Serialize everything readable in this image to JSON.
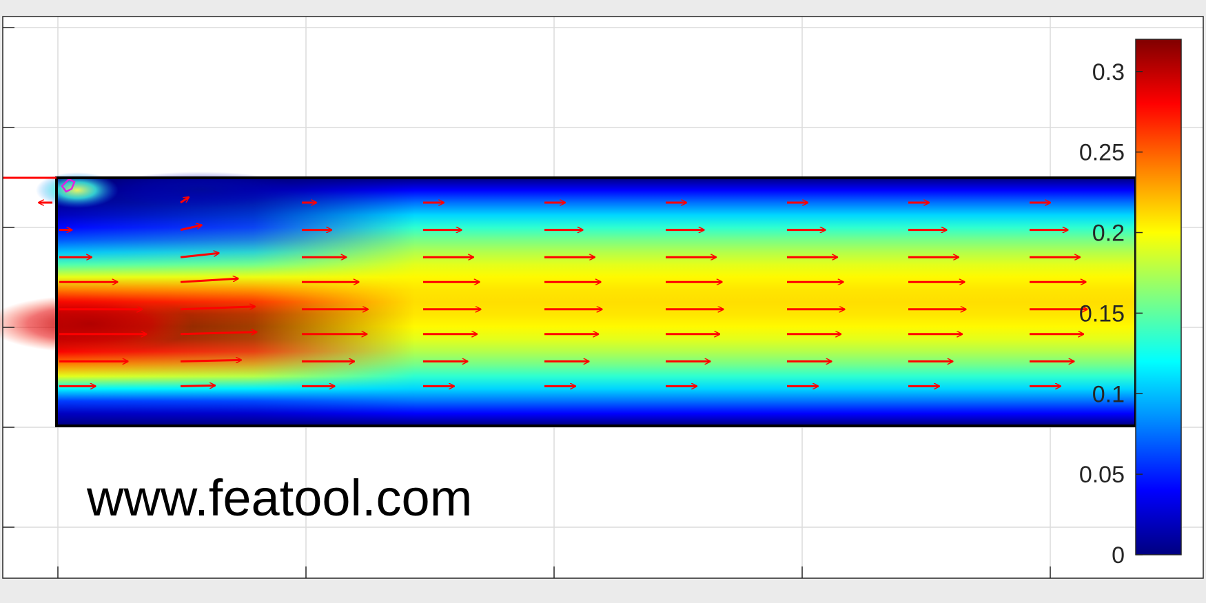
{
  "chart_data": {
    "type": "heatmap",
    "subtype": "flow-field-with-quiver",
    "title": "",
    "xlabel": "",
    "ylabel": "",
    "grid": true,
    "colormap": "jet",
    "colorbar": {
      "range": [
        0,
        0.32
      ],
      "ticks": [
        0,
        0.05,
        0.1,
        0.15,
        0.2,
        0.25,
        0.3
      ],
      "tick_labels": [
        "0",
        "0.05",
        "0.1",
        "0.15",
        "0.2",
        "0.25",
        "0.3"
      ],
      "placement": "right"
    },
    "quiver": {
      "color": "#ff0000",
      "columns": [
        0.0,
        0.55,
        1.1,
        1.65,
        2.2,
        2.75,
        3.3,
        3.85,
        4.4
      ],
      "rows": [
        0.95,
        0.85,
        0.75,
        0.65,
        0.55,
        0.45,
        0.35,
        0.25,
        0.15,
        0.05
      ],
      "column_magnitude_notes": "inflow jet on the left develops into a parabolic profile downstream"
    },
    "inflow_peak_y": 0.4,
    "max_velocity": 0.32
  },
  "watermark": {
    "text": "www.featool.com"
  },
  "colors": {
    "background": "#ebebeb",
    "axes_background": "#ffffff",
    "grid": "#dcdcdc",
    "domain_outline": "#000000",
    "arrow": "#ff0000",
    "marker": "#e020e0"
  }
}
